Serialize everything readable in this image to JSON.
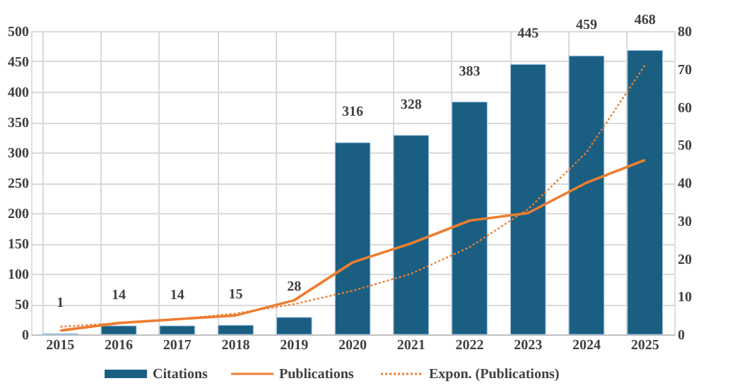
{
  "chart_data": {
    "type": "bar",
    "categories": [
      "2015",
      "2016",
      "2017",
      "2018",
      "2019",
      "2020",
      "2021",
      "2022",
      "2023",
      "2024",
      "2025"
    ],
    "series": [
      {
        "name": "Citations",
        "color": "#1a5f82",
        "values": [
          1,
          14,
          14,
          15,
          28,
          316,
          328,
          383,
          445,
          459,
          468
        ],
        "value_labels": [
          "1",
          "14",
          "14",
          "15",
          "28",
          "316",
          "328",
          "383",
          "445",
          "459",
          "468"
        ]
      },
      {
        "name": "Publications",
        "type": "line",
        "axis": "y2",
        "color": "#ed7d31",
        "line_style": "solid",
        "values": [
          1,
          3,
          4,
          5,
          9,
          19,
          24,
          30,
          32,
          40,
          46
        ]
      },
      {
        "name": "Expon. (Publications)",
        "type": "line",
        "axis": "y2",
        "color": "#ed7d31",
        "line_style": "dotted",
        "values": [
          2,
          3,
          4,
          5.5,
          8,
          11.5,
          16,
          23,
          33,
          48,
          71
        ]
      }
    ],
    "ylim": [
      0,
      500
    ],
    "yticks": [
      0,
      50,
      100,
      150,
      200,
      250,
      300,
      350,
      400,
      450,
      500
    ],
    "y2lim": [
      0,
      80
    ],
    "y2ticks": [
      0,
      10,
      20,
      30,
      40,
      50,
      60,
      70,
      80
    ],
    "grid": true,
    "legend": "bottom"
  }
}
